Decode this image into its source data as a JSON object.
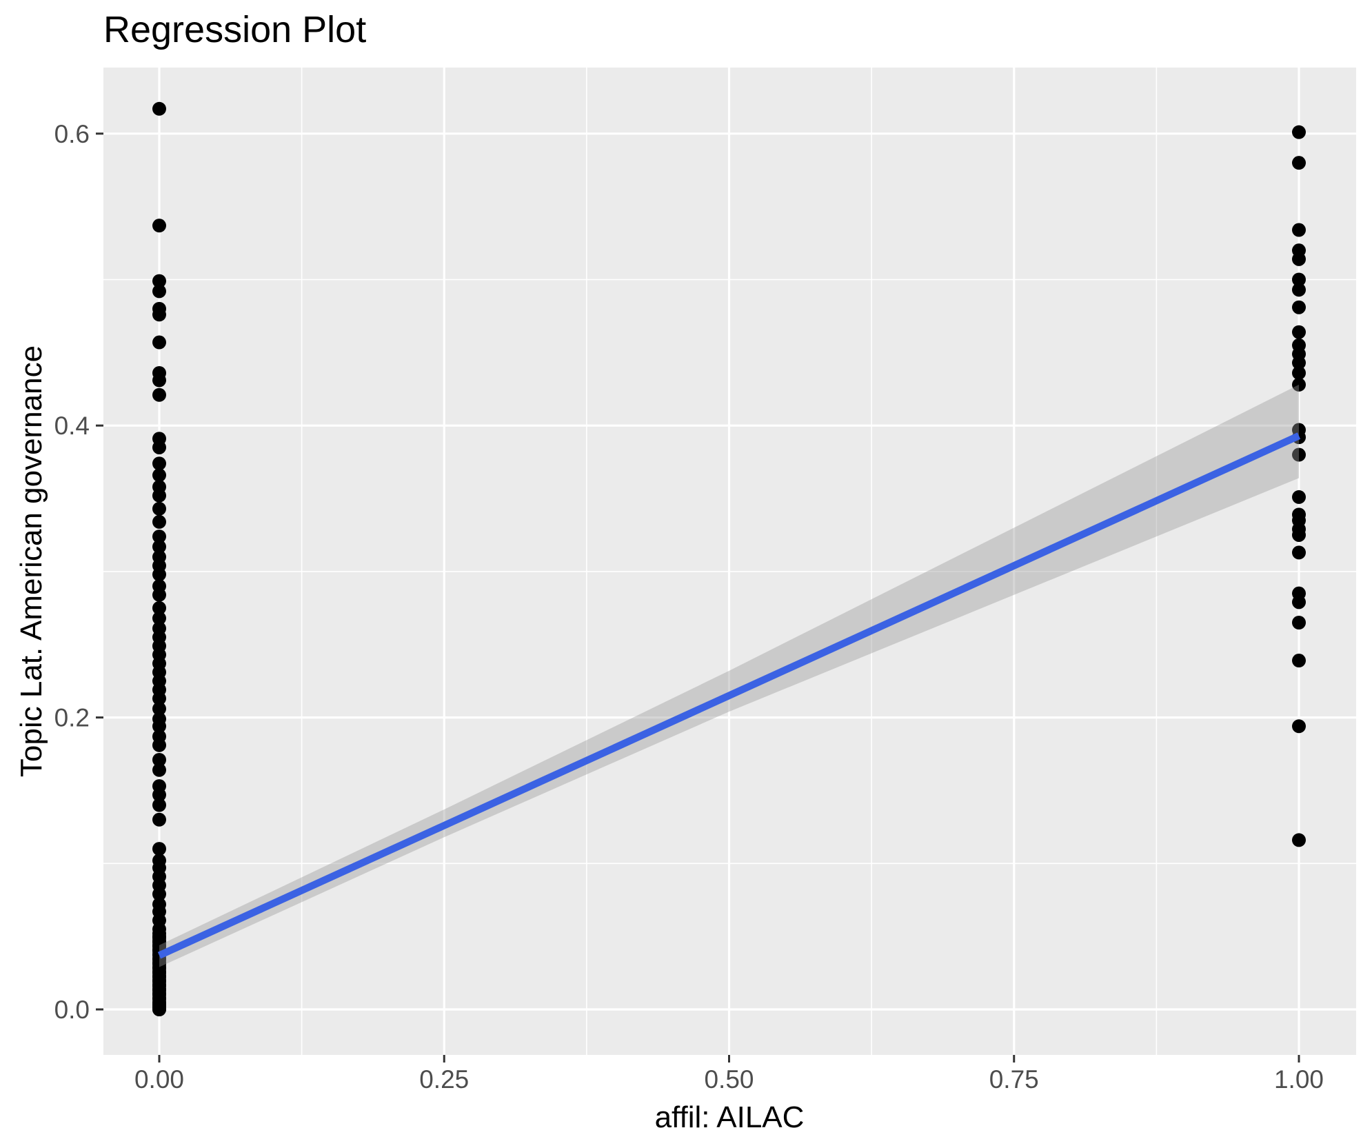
{
  "title": "Regression Plot",
  "chart_data": {
    "type": "scatter",
    "title": "Regression Plot",
    "xlabel": "affil: AILAC",
    "ylabel": "Topic Lat. American governance",
    "xlim": [
      -0.049,
      1.05
    ],
    "ylim": [
      -0.031,
      0.645
    ],
    "grid": "on",
    "x_major_ticks": [
      0,
      0.25,
      0.5,
      0.75,
      1
    ],
    "x_tick_labels": [
      "0.00",
      "0.25",
      "0.50",
      "0.75",
      "1.00"
    ],
    "x_minor_ticks": [
      0.125,
      0.375,
      0.625,
      0.875
    ],
    "y_major_ticks": [
      0,
      0.2,
      0.4,
      0.6
    ],
    "y_tick_labels": [
      "0.0",
      "0.2",
      "0.4",
      "0.6"
    ],
    "y_minor_ticks": [
      0.1,
      0.3,
      0.5
    ],
    "series": [
      {
        "name": "observations at affil AILAC = 0",
        "x": 0,
        "y": [
          0.617,
          0.537,
          0.499,
          0.492,
          0.48,
          0.476,
          0.457,
          0.436,
          0.431,
          0.421,
          0.391,
          0.385,
          0.374,
          0.366,
          0.358,
          0.352,
          0.343,
          0.334,
          0.324,
          0.317,
          0.31,
          0.304,
          0.298,
          0.29,
          0.284,
          0.275,
          0.268,
          0.261,
          0.255,
          0.249,
          0.243,
          0.237,
          0.231,
          0.225,
          0.219,
          0.213,
          0.206,
          0.199,
          0.194,
          0.187,
          0.181,
          0.171,
          0.164,
          0.153,
          0.147,
          0.14,
          0.13,
          0.11,
          0.102,
          0.097,
          0.091,
          0.085,
          0.079,
          0.072,
          0.067,
          0.061,
          0.055,
          0.052,
          0.05,
          0.049,
          0.047,
          0.046,
          0.044,
          0.043,
          0.041,
          0.04,
          0.038,
          0.037,
          0.035,
          0.034,
          0.032,
          0.031,
          0.029,
          0.028,
          0.026,
          0.025,
          0.023,
          0.022,
          0.02,
          0.019,
          0.017,
          0.016,
          0.014,
          0.013,
          0.011,
          0.01,
          0.008,
          0.007,
          0.005,
          0.004,
          0.003,
          0.002,
          0.001,
          0.0,
          0.0
        ]
      },
      {
        "name": "observations at affil AILAC = 1",
        "x": 1,
        "y": [
          0.601,
          0.58,
          0.534,
          0.52,
          0.514,
          0.5,
          0.493,
          0.481,
          0.464,
          0.455,
          0.449,
          0.443,
          0.436,
          0.428,
          0.397,
          0.392,
          0.38,
          0.351,
          0.339,
          0.335,
          0.329,
          0.325,
          0.313,
          0.285,
          0.279,
          0.265,
          0.239,
          0.194,
          0.116
        ]
      }
    ],
    "regression_line": {
      "x": [
        0,
        1
      ],
      "y": [
        0.037,
        0.393
      ]
    },
    "confidence_band": {
      "x": [
        0,
        0.25,
        0.5,
        0.75,
        1
      ],
      "upper": [
        0.044,
        0.137,
        0.232,
        0.33,
        0.428
      ],
      "lower": [
        0.029,
        0.118,
        0.204,
        0.284,
        0.364
      ]
    },
    "colors": {
      "panel_background": "#EBEBEB",
      "gridline": "#FFFFFF",
      "point": "#000000",
      "regression_line": "#3B62E3",
      "confidence_band": "rgba(153,153,153,0.4)",
      "tick_mark": "#333333",
      "tick_label_text": "#4D4D4D",
      "title_text": "#000000"
    }
  }
}
